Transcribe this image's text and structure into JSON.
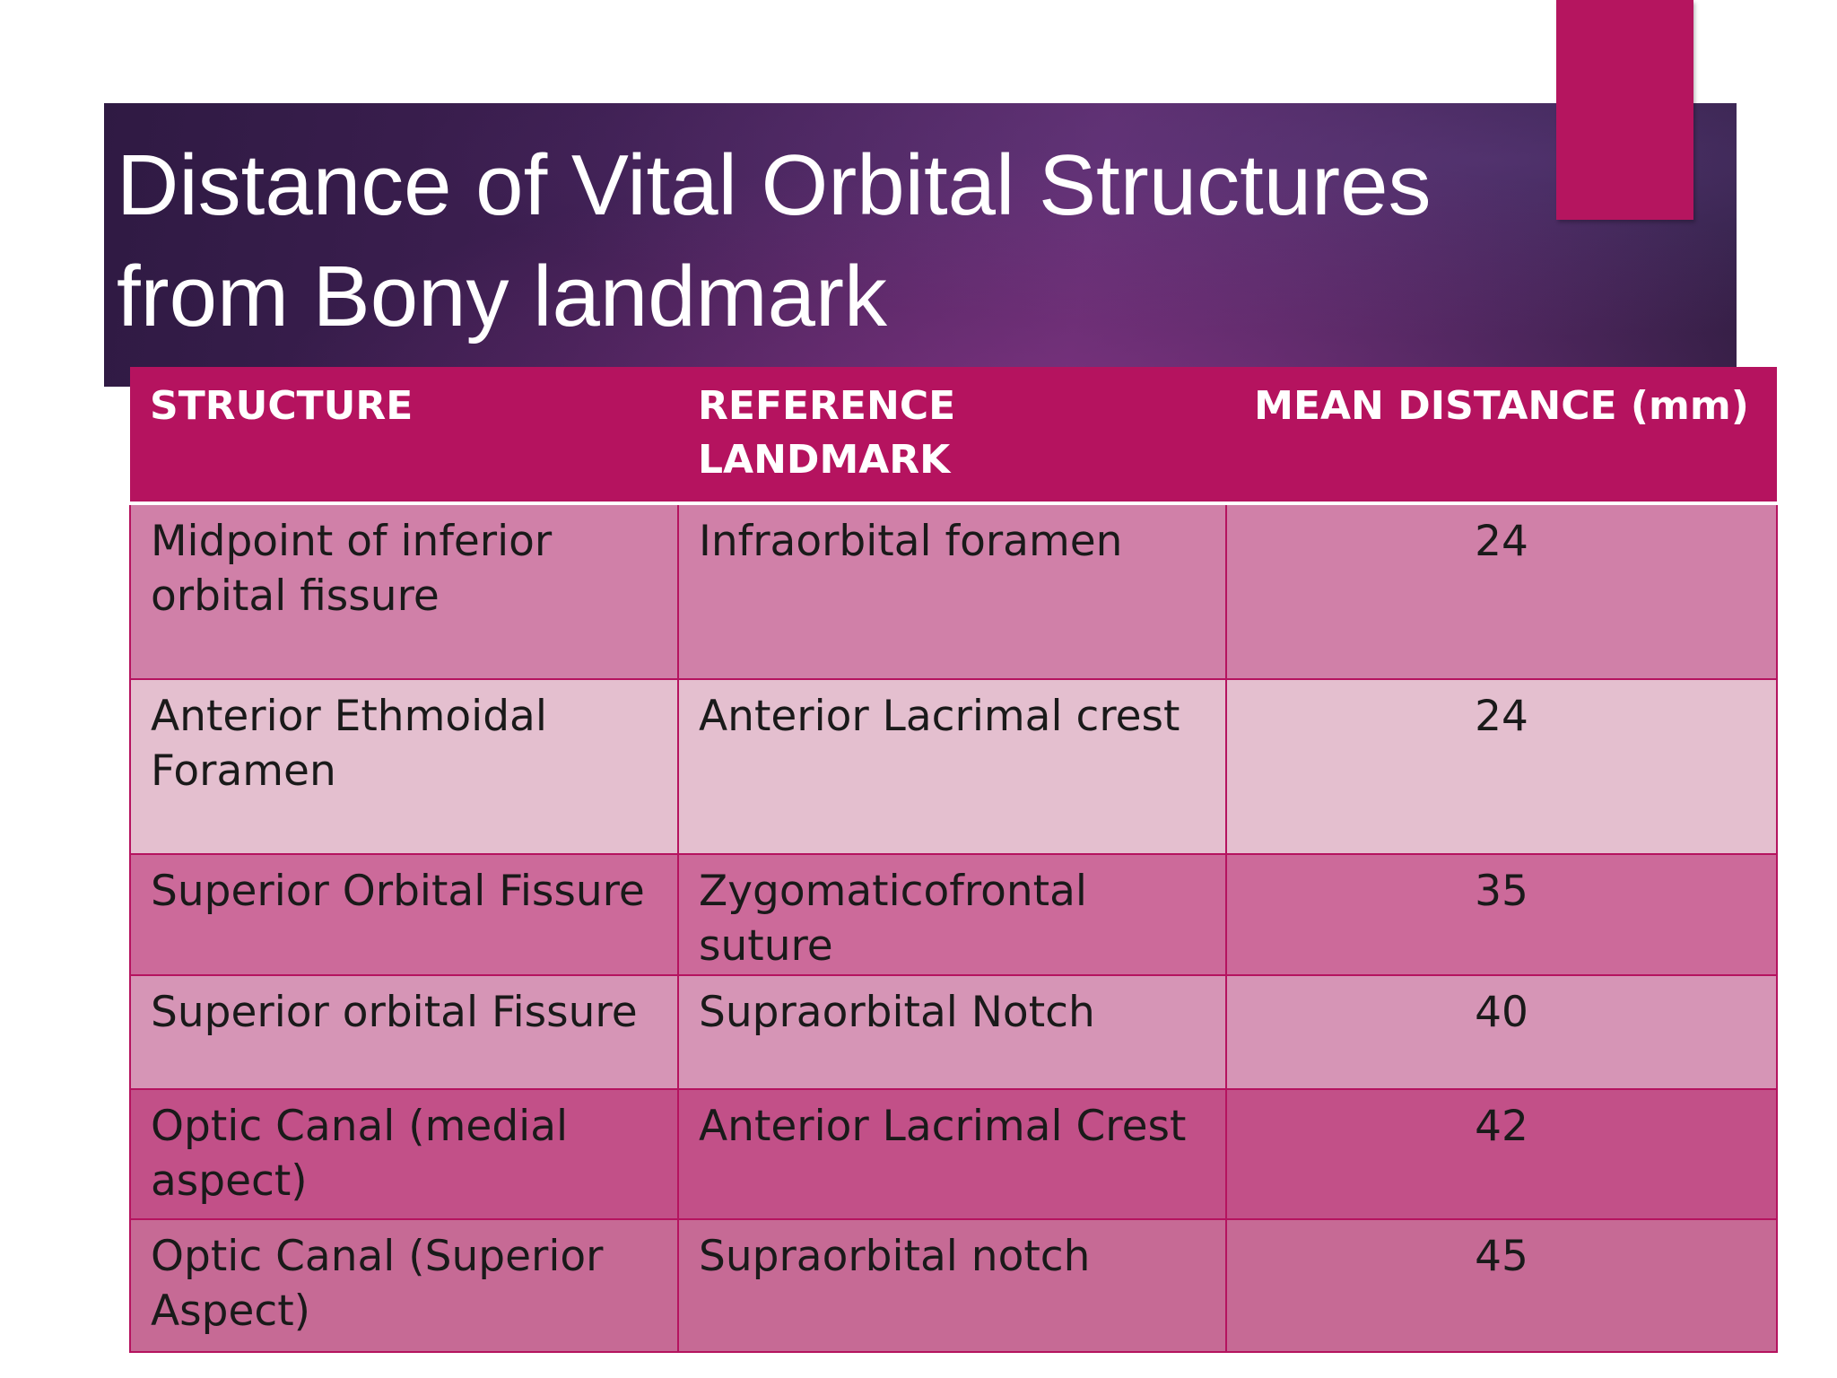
{
  "slide": {
    "title_line1": "Distance of Vital Orbital Structures",
    "title_line2": "from Bony landmark"
  },
  "table": {
    "headers": [
      "STRUCTURE",
      "REFERENCE LANDMARK",
      "MEAN DISTANCE (mm)"
    ],
    "rows": [
      {
        "structure": "Midpoint of inferior orbital fissure",
        "landmark": "Infraorbital foramen",
        "distance": "24"
      },
      {
        "structure": "Anterior Ethmoidal Foramen",
        "landmark": "Anterior Lacrimal crest",
        "distance": "24"
      },
      {
        "structure": "Superior Orbital Fissure",
        "landmark": "Zygomaticofrontal suture",
        "distance": "35"
      },
      {
        "structure": "Superior orbital Fissure",
        "landmark": "Supraorbital Notch",
        "distance": "40"
      },
      {
        "structure": "Optic Canal (medial aspect)",
        "landmark": "Anterior Lacrimal Crest",
        "distance": "42"
      },
      {
        "structure": "Optic Canal (Superior Aspect)",
        "landmark": "Supraorbital notch",
        "distance": "45"
      }
    ]
  },
  "colors": {
    "header_background": "#b5135f",
    "accent": "#b5155f",
    "title_band": "#3e1f52"
  }
}
